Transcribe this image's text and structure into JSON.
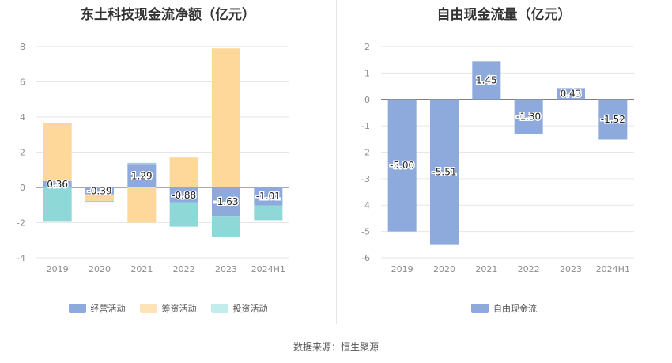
{
  "source": "数据来源：恒生聚源",
  "chart_data": [
    {
      "type": "bar",
      "stacked": true,
      "title": "东土科技现金流净额（亿元）",
      "categories": [
        "2019",
        "2020",
        "2021",
        "2022",
        "2023",
        "2024H1"
      ],
      "ylim": [
        -4,
        8
      ],
      "yticks": [
        -4,
        -2,
        0,
        2,
        4,
        6,
        8
      ],
      "grid": true,
      "legend_position": "bottom",
      "series": [
        {
          "name": "经营活动",
          "color": "#8eaadc",
          "values": [
            0.36,
            -0.39,
            1.29,
            -0.88,
            -1.63,
            -1.01
          ],
          "labels": [
            "0.36",
            "-0.39",
            "1.29",
            "-0.88",
            "-1.63",
            "-1.01"
          ]
        },
        {
          "name": "筹资活动",
          "color": "#fdd89a",
          "values": [
            3.3,
            -0.37,
            -2.0,
            1.7,
            7.9,
            0.0
          ]
        },
        {
          "name": "投资活动",
          "color": "#8ed8d8",
          "values": [
            -1.95,
            -0.1,
            0.11,
            -1.35,
            -1.2,
            -0.85
          ]
        }
      ],
      "legend_swatch_colors": [
        "#8eaadc",
        "#fde3b8",
        "#c3ecec"
      ]
    },
    {
      "type": "bar",
      "title": "自由现金流量（亿元）",
      "categories": [
        "2019",
        "2020",
        "2021",
        "2022",
        "2023",
        "2024H1"
      ],
      "ylim": [
        -6,
        2
      ],
      "yticks": [
        -6,
        -5,
        -4,
        -3,
        -2,
        -1,
        0,
        1,
        2
      ],
      "grid": true,
      "legend_position": "bottom",
      "series": [
        {
          "name": "自由现金流",
          "color": "#8eaadc",
          "values": [
            -5.0,
            -5.51,
            1.45,
            -1.3,
            0.43,
            -1.52
          ],
          "labels": [
            "-5.00",
            "-5.51",
            "1.45",
            "-1.30",
            "0.43",
            "-1.52"
          ]
        }
      ]
    }
  ]
}
